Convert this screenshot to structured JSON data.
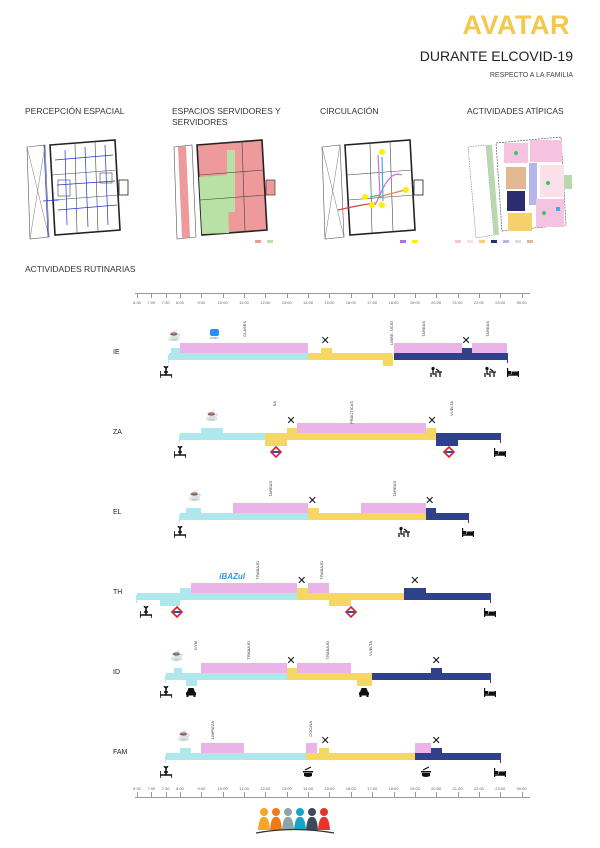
{
  "header": {
    "title": "AVATAR",
    "subtitle": "DURANTE ELCOVID-19",
    "subsubtitle": "RESPECTO A LA FAMILIA"
  },
  "sections": {
    "percepcion": "PERCEPCIÓN ESPACIAL",
    "espacios": "ESPACIOS SERVIDORES Y SERVIDORES",
    "circulacion": "CIRCULACIÓN",
    "atipicas": "ACTIVIDADES ATÍPICAS",
    "rutinarias": "ACTIVIDADES RUTINARIAS"
  },
  "colors": {
    "title": "#f2c94c",
    "morning": "#aee7ec",
    "afternoon": "#f6d665",
    "night": "#2f418a",
    "activity": "#eab4e8",
    "servidor": "#ef9a9a",
    "servido": "#b9e0a5"
  },
  "axis_ticks": [
    {
      "label": "6:30",
      "h": 6.5
    },
    {
      "label": "7:00",
      "h": 7
    },
    {
      "label": "7:30",
      "h": 7.5
    },
    {
      "label": "8:00",
      "h": 8
    },
    {
      "label": "9:00",
      "h": 9
    },
    {
      "label": "10:00",
      "h": 10
    },
    {
      "label": "11:00",
      "h": 11
    },
    {
      "label": "12:00",
      "h": 12
    },
    {
      "label": "13:00",
      "h": 13
    },
    {
      "label": "14:00",
      "h": 14
    },
    {
      "label": "15:00",
      "h": 15
    },
    {
      "label": "16:00",
      "h": 16
    },
    {
      "label": "17:00",
      "h": 17
    },
    {
      "label": "18:00",
      "h": 18
    },
    {
      "label": "19:00",
      "h": 19
    },
    {
      "label": "20:00",
      "h": 20
    },
    {
      "label": "21:00",
      "h": 21
    },
    {
      "label": "22:00",
      "h": 22
    },
    {
      "label": "23:00",
      "h": 23
    },
    {
      "label": "00:00",
      "h": 24
    }
  ],
  "rows": [
    {
      "name": "IE",
      "segments": [
        {
          "from": 7.6,
          "to": 14,
          "c": "morning",
          "k": "base"
        },
        {
          "from": 14,
          "to": 18,
          "c": "afternoon",
          "k": "base"
        },
        {
          "from": 18,
          "to": 23.3,
          "c": "night",
          "k": "base"
        },
        {
          "from": 7.7,
          "to": 8,
          "c": "morning",
          "k": "bump"
        },
        {
          "from": 8,
          "to": 14,
          "c": "activity",
          "k": "up"
        },
        {
          "from": 14.6,
          "to": 15.1,
          "c": "afternoon",
          "k": "bump"
        },
        {
          "from": 17.5,
          "to": 18,
          "c": "afternoon",
          "k": "dip"
        },
        {
          "from": 18,
          "to": 21.2,
          "c": "activity",
          "k": "up"
        },
        {
          "from": 21.2,
          "to": 21.7,
          "c": "night",
          "k": "bump"
        },
        {
          "from": 21.7,
          "to": 23.3,
          "c": "activity",
          "k": "up"
        }
      ],
      "labels": [
        {
          "h": 11,
          "text": "CLASES"
        },
        {
          "h": 17.9,
          "text": "LIBRE, OCIO"
        },
        {
          "h": 19.4,
          "text": "TAREAS"
        },
        {
          "h": 22.4,
          "text": "TAREAS"
        }
      ],
      "icons_top": [
        {
          "h": 7.8,
          "icon": "coffee"
        },
        {
          "h": 9.6,
          "icon": "zoom",
          "text": "zoom"
        },
        {
          "h": 14.8,
          "icon": "x"
        },
        {
          "h": 21.4,
          "icon": "x"
        }
      ],
      "icons_bottom": [
        {
          "h": 7.5,
          "icon": "wake"
        },
        {
          "h": 20,
          "icon": "desk"
        },
        {
          "h": 22.5,
          "icon": "desk"
        },
        {
          "h": 23.6,
          "icon": "bed"
        }
      ]
    },
    {
      "name": "ZA",
      "segments": [
        {
          "from": 8,
          "to": 12,
          "c": "morning",
          "k": "base"
        },
        {
          "from": 9,
          "to": 10,
          "c": "morning",
          "k": "bump"
        },
        {
          "from": 12,
          "to": 13,
          "c": "afternoon",
          "k": "dip"
        },
        {
          "from": 13,
          "to": 20,
          "c": "afternoon",
          "k": "base"
        },
        {
          "from": 13,
          "to": 13.5,
          "c": "afternoon",
          "k": "bump"
        },
        {
          "from": 13.5,
          "to": 19.5,
          "c": "activity",
          "k": "up"
        },
        {
          "from": 19.5,
          "to": 20,
          "c": "afternoon",
          "k": "bump"
        },
        {
          "from": 20,
          "to": 23,
          "c": "night",
          "k": "base"
        },
        {
          "from": 20,
          "to": 21,
          "c": "night",
          "k": "dip"
        }
      ],
      "labels": [
        {
          "h": 12.4,
          "text": "SA"
        },
        {
          "h": 16,
          "text": "PRÁCTICAS"
        },
        {
          "h": 20.7,
          "text": "VUELTA"
        }
      ],
      "icons_top": [
        {
          "h": 9.5,
          "icon": "coffee"
        },
        {
          "h": 13.2,
          "icon": "x"
        },
        {
          "h": 19.8,
          "icon": "x"
        }
      ],
      "icons_bottom": [
        {
          "h": 8,
          "icon": "wake"
        },
        {
          "h": 12.5,
          "icon": "metro"
        },
        {
          "h": 20.6,
          "icon": "metro"
        },
        {
          "h": 23,
          "icon": "bed"
        }
      ]
    },
    {
      "name": "EL",
      "segments": [
        {
          "from": 8,
          "to": 14,
          "c": "morning",
          "k": "base"
        },
        {
          "from": 8.3,
          "to": 9,
          "c": "morning",
          "k": "bump"
        },
        {
          "from": 10.5,
          "to": 14,
          "c": "activity",
          "k": "up"
        },
        {
          "from": 14,
          "to": 19.5,
          "c": "afternoon",
          "k": "base"
        },
        {
          "from": 14,
          "to": 14.5,
          "c": "afternoon",
          "k": "bump"
        },
        {
          "from": 16.5,
          "to": 19.5,
          "c": "activity",
          "k": "up"
        },
        {
          "from": 19.5,
          "to": 21.5,
          "c": "night",
          "k": "base"
        },
        {
          "from": 19.5,
          "to": 20,
          "c": "night",
          "k": "bump"
        }
      ],
      "labels": [
        {
          "h": 12.2,
          "text": "TAREAS"
        },
        {
          "h": 18,
          "text": "TAREAS"
        }
      ],
      "icons_top": [
        {
          "h": 8.7,
          "icon": "coffee"
        },
        {
          "h": 14.2,
          "icon": "x"
        },
        {
          "h": 19.7,
          "icon": "x"
        }
      ],
      "icons_bottom": [
        {
          "h": 8,
          "icon": "wake"
        },
        {
          "h": 18.5,
          "icon": "desk"
        },
        {
          "h": 21.5,
          "icon": "bed"
        }
      ]
    },
    {
      "name": "TH",
      "segments": [
        {
          "from": 6.5,
          "to": 13.5,
          "c": "morning",
          "k": "base"
        },
        {
          "from": 7.3,
          "to": 8,
          "c": "morning",
          "k": "dip"
        },
        {
          "from": 8,
          "to": 8.5,
          "c": "morning",
          "k": "bump"
        },
        {
          "from": 8.5,
          "to": 13.5,
          "c": "activity",
          "k": "up"
        },
        {
          "from": 13.5,
          "to": 18.5,
          "c": "afternoon",
          "k": "base"
        },
        {
          "from": 13.5,
          "to": 14,
          "c": "afternoon",
          "k": "bump"
        },
        {
          "from": 14,
          "to": 15,
          "c": "activity",
          "k": "up"
        },
        {
          "from": 15,
          "to": 16,
          "c": "afternoon",
          "k": "dip"
        },
        {
          "from": 18.5,
          "to": 22.5,
          "c": "night",
          "k": "base"
        },
        {
          "from": 18.5,
          "to": 19.5,
          "c": "night",
          "k": "bump"
        }
      ],
      "labels": [
        {
          "h": 11.6,
          "text": "TRABAJO"
        },
        {
          "h": 14.6,
          "text": "TRABAJO"
        }
      ],
      "icons_top": [
        {
          "h": 10.4,
          "icon": "logo",
          "text": "iBAZul"
        },
        {
          "h": 13.7,
          "icon": "x"
        },
        {
          "h": 19,
          "icon": "x"
        }
      ],
      "icons_bottom": [
        {
          "h": 6.8,
          "icon": "wake"
        },
        {
          "h": 7.9,
          "icon": "metro"
        },
        {
          "h": 16,
          "icon": "metro"
        },
        {
          "h": 22.5,
          "icon": "bed"
        }
      ]
    },
    {
      "name": "ID",
      "segments": [
        {
          "from": 7.5,
          "to": 13,
          "c": "morning",
          "k": "base"
        },
        {
          "from": 7.8,
          "to": 8.1,
          "c": "morning",
          "k": "bump"
        },
        {
          "from": 8.3,
          "to": 8.8,
          "c": "morning",
          "k": "dip"
        },
        {
          "from": 9,
          "to": 13,
          "c": "activity",
          "k": "up"
        },
        {
          "from": 13,
          "to": 17,
          "c": "afternoon",
          "k": "base"
        },
        {
          "from": 13,
          "to": 13.5,
          "c": "afternoon",
          "k": "bump"
        },
        {
          "from": 13.5,
          "to": 16,
          "c": "activity",
          "k": "up"
        },
        {
          "from": 16.3,
          "to": 17,
          "c": "afternoon",
          "k": "dip"
        },
        {
          "from": 17,
          "to": 22.5,
          "c": "night",
          "k": "base"
        },
        {
          "from": 19.75,
          "to": 20.25,
          "c": "night",
          "k": "bump"
        }
      ],
      "labels": [
        {
          "h": 8.7,
          "text": "GYM"
        },
        {
          "h": 11.2,
          "text": "TRABAJO"
        },
        {
          "h": 14.9,
          "text": "TRABAJO"
        },
        {
          "h": 16.9,
          "text": "VUELTA"
        }
      ],
      "icons_top": [
        {
          "h": 7.9,
          "icon": "coffee"
        },
        {
          "h": 13.2,
          "icon": "x"
        },
        {
          "h": 20,
          "icon": "x"
        }
      ],
      "icons_bottom": [
        {
          "h": 7.5,
          "icon": "wake"
        },
        {
          "h": 8.5,
          "icon": "car"
        },
        {
          "h": 16.6,
          "icon": "car"
        },
        {
          "h": 22.5,
          "icon": "bed"
        }
      ]
    },
    {
      "name": "FAM",
      "segments": [
        {
          "from": 7.5,
          "to": 13.9,
          "c": "morning",
          "k": "base"
        },
        {
          "from": 8,
          "to": 8.5,
          "c": "morning",
          "k": "bump"
        },
        {
          "from": 9,
          "to": 11,
          "c": "activity",
          "k": "up"
        },
        {
          "from": 13.9,
          "to": 19,
          "c": "afternoon",
          "k": "base"
        },
        {
          "from": 13.9,
          "to": 14.4,
          "c": "activity",
          "k": "up"
        },
        {
          "from": 14.5,
          "to": 15,
          "c": "afternoon",
          "k": "bump"
        },
        {
          "from": 19,
          "to": 23,
          "c": "night",
          "k": "base"
        },
        {
          "from": 19,
          "to": 19.75,
          "c": "activity",
          "k": "up"
        },
        {
          "from": 19.75,
          "to": 20.25,
          "c": "night",
          "k": "bump"
        }
      ],
      "labels": [
        {
          "h": 9.5,
          "text": "LIMPIEZA"
        },
        {
          "h": 14.1,
          "text": "COCINA"
        }
      ],
      "icons_top": [
        {
          "h": 8.2,
          "icon": "coffee"
        },
        {
          "h": 14.8,
          "icon": "x"
        },
        {
          "h": 20,
          "icon": "x"
        }
      ],
      "icons_bottom": [
        {
          "h": 7.5,
          "icon": "wake"
        },
        {
          "h": 14,
          "icon": "pot"
        },
        {
          "h": 19.5,
          "icon": "pot"
        },
        {
          "h": 23,
          "icon": "bed"
        }
      ]
    }
  ]
}
